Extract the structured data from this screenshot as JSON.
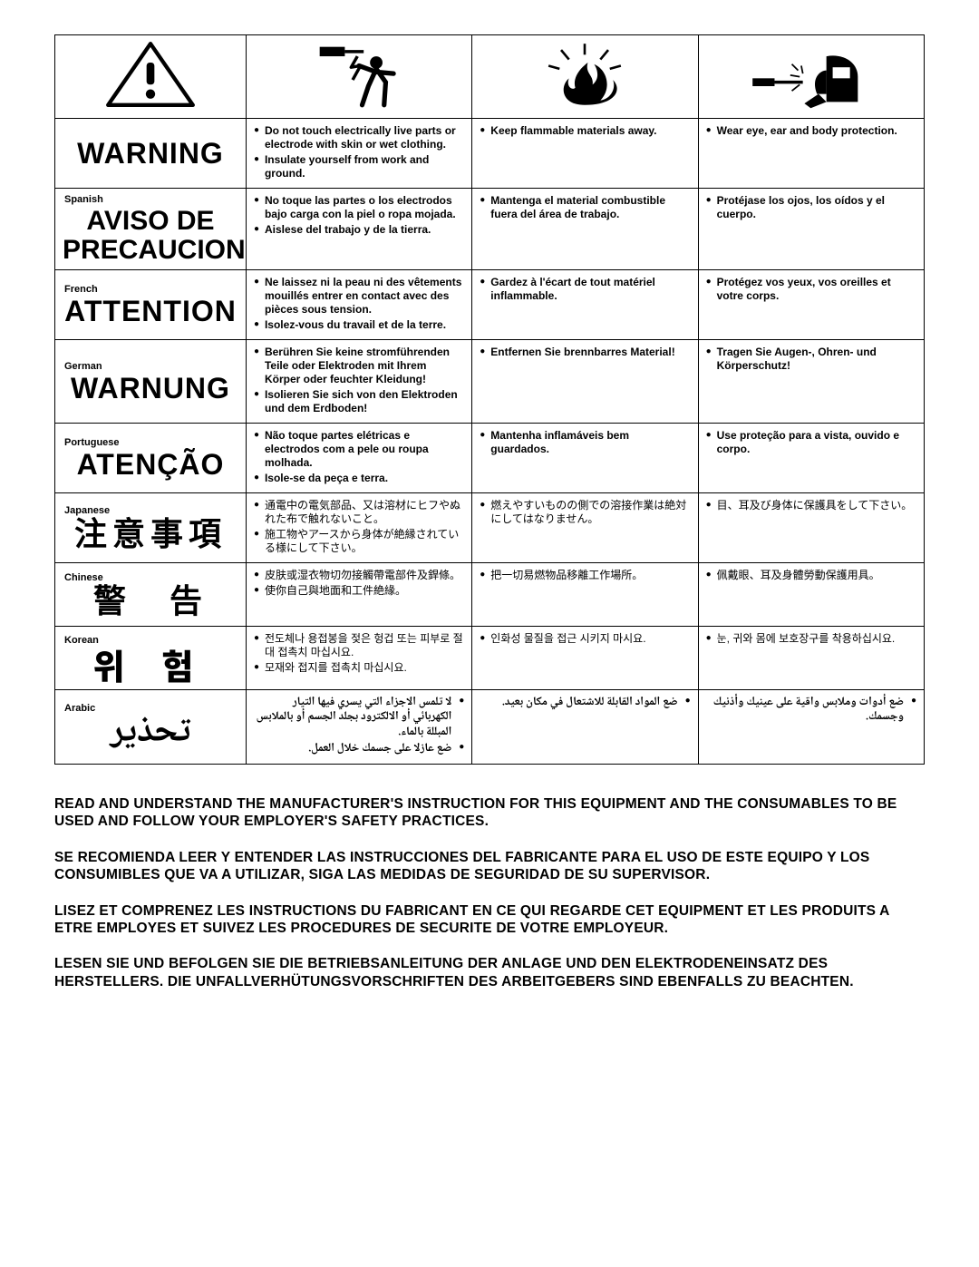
{
  "colors": {
    "stroke": "#000000",
    "fill_black": "#000000",
    "bg": "#ffffff"
  },
  "icons": {
    "caution": "caution-triangle-icon",
    "shock": "electric-shock-person-icon",
    "fire": "fire-explosion-icon",
    "ppe": "welding-ppe-icon"
  },
  "rows": [
    {
      "lang_label": "",
      "title": "WARNING",
      "title_class": "big-title",
      "col2": [
        "Do not touch electrically live parts or electrode with skin or wet clothing.",
        "Insulate yourself from work and ground."
      ],
      "col3": [
        "Keep flammable materials away."
      ],
      "col4": [
        "Wear eye, ear and body protection."
      ]
    },
    {
      "lang_label": "Spanish",
      "title": "AVISO DE PRECAUCION",
      "title_class": "mid-title",
      "col2": [
        "No toque las partes o los electrodos bajo carga con la piel o ropa mojada.",
        "Aislese del trabajo y de la tierra."
      ],
      "col3": [
        "Mantenga el material combustible fuera del área de trabajo."
      ],
      "col4": [
        "Protéjase los ojos, los oídos y el cuerpo."
      ]
    },
    {
      "lang_label": "French",
      "title": "ATTENTION",
      "title_class": "big-title",
      "col2": [
        "Ne laissez ni la peau ni des vêtements mouillés entrer en contact avec des pièces sous tension.",
        "Isolez-vous du travail et de la terre."
      ],
      "col3": [
        "Gardez à l'écart de tout matériel inflammable."
      ],
      "col4": [
        "Protégez vos yeux, vos oreilles et votre corps."
      ]
    },
    {
      "lang_label": "German",
      "title": "WARNUNG",
      "title_class": "big-title",
      "col2": [
        "Berühren Sie keine stromführenden Teile oder Elektroden mit Ihrem Körper oder feuchter Kleidung!",
        "Isolieren Sie sich von den Elektroden und dem Erdboden!"
      ],
      "col3": [
        "Entfernen Sie brennbarres Material!"
      ],
      "col4": [
        "Tragen Sie Augen-, Ohren- und Körperschutz!"
      ]
    },
    {
      "lang_label": "Portuguese",
      "title": "ATENÇÃO",
      "title_class": "big-title",
      "col2": [
        "Não toque partes elétricas e electrodos com a pele ou roupa molhada.",
        "Isole-se da peça e terra."
      ],
      "col3": [
        "Mantenha inflamáveis bem guardados."
      ],
      "col4": [
        "Use proteção para a vista, ouvido e corpo."
      ]
    },
    {
      "lang_label": "Japanese",
      "title": "注意事項",
      "title_class": "cjk-title",
      "cjk": true,
      "col2": [
        "通電中の電気部品、又は溶材にヒフやぬれた布で触れないこと。",
        "施工物やアースから身体が絶縁されている様にして下さい。"
      ],
      "col3": [
        "燃えやすいものの側での溶接作業は絶対にしてはなりません。"
      ],
      "col4": [
        "目、耳及び身体に保護具をして下さい。"
      ]
    },
    {
      "lang_label": "Chinese",
      "title": "警　告",
      "title_class": "cjk-title",
      "cjk": true,
      "col2": [
        "皮肤或湿衣物切勿接觸帶電部件及銲條。",
        "使你自己與地面和工件絶緣。"
      ],
      "col3": [
        "把一切易燃物品移離工作場所。"
      ],
      "col4": [
        "佩戴眼、耳及身體勞動保護用具。"
      ]
    },
    {
      "lang_label": "Korean",
      "title": "위 험",
      "title_class": "kr-title",
      "cjk": true,
      "col2": [
        "전도체나 용접봉을 젖은 헝겁 또는 피부로 절대 접촉치 마십시요.",
        "모재와 접지를 접촉치 마십시요."
      ],
      "col3": [
        "인화성 물질을 접근 시키지 마시요."
      ],
      "col4": [
        "눈, 귀와 몸에 보호장구를 착용하십시요."
      ]
    },
    {
      "lang_label": "Arabic",
      "title": "تحذير",
      "title_class": "ar-title",
      "arabic": true,
      "col2": [
        "لا تلمس الاجزاء التي يسري فيها التيار الكهربائي أو الالكترود بجلد الجسم أو بالملابس المبللة بالماء.",
        "ضع عازلا على جسمك خلال العمل."
      ],
      "col3": [
        "ضع المواد القابلة للاشتعال في مكان بعيد."
      ],
      "col4": [
        "ضع أدوات وملابس واقية على عينيك وأذنيك وجسمك."
      ]
    }
  ],
  "paragraphs": [
    "READ AND UNDERSTAND THE MANUFACTURER'S INSTRUCTION FOR THIS EQUIPMENT AND THE CONSUMABLES TO BE USED AND FOLLOW YOUR EMPLOYER'S SAFETY PRACTICES.",
    "SE RECOMIENDA LEER Y ENTENDER LAS INSTRUCCIONES DEL FABRICANTE PARA EL USO DE ESTE EQUIPO Y LOS CONSUMIBLES QUE VA A UTILIZAR, SIGA LAS MEDIDAS DE SEGURIDAD DE SU SUPERVISOR.",
    "LISEZ ET COMPRENEZ LES INSTRUCTIONS DU FABRICANT EN CE QUI REGARDE CET EQUIPMENT ET LES PRODUITS A ETRE EMPLOYES ET SUIVEZ LES PROCEDURES DE SECURITE DE VOTRE EMPLOYEUR.",
    "LESEN SIE UND BEFOLGEN SIE DIE BETRIEBSANLEITUNG DER ANLAGE UND DEN ELEKTRODENEINSATZ DES HERSTELLERS. DIE UNFALLVERHÜTUNGSVORSCHRIFTEN DES ARBEITGEBERS SIND EBENFALLS ZU BEACHTEN."
  ]
}
